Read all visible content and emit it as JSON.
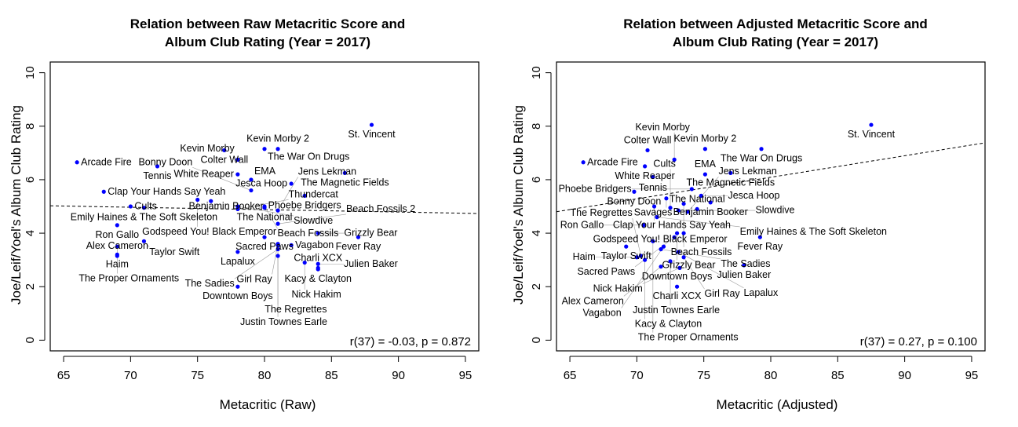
{
  "chart_data": [
    {
      "type": "scatter",
      "title": "Relation between Raw Metacritic Score and\nAlbum Club Rating (Year = 2017)",
      "title_lines": [
        "Relation between Raw Metacritic Score and",
        "Album Club Rating (Year = 2017)"
      ],
      "xlabel": "Metacritic (Raw)",
      "ylabel": "Joe/Leif/Yoel's Album Club Rating",
      "xlim": [
        64,
        96
      ],
      "ylim": [
        -0.4,
        10.4
      ],
      "xticks": [
        65,
        70,
        75,
        80,
        85,
        90,
        95
      ],
      "yticks": [
        0,
        2,
        4,
        6,
        8,
        10
      ],
      "point_color": "#0000ff",
      "annotation": "r(37) = -0.03, p = 0.872",
      "regression": {
        "intercept": 5.6,
        "slope": -0.009,
        "style": "dashed"
      },
      "points": [
        {
          "label": "St. Vincent",
          "x": 88,
          "y": 8.05
        },
        {
          "label": "Arcade Fire",
          "x": 66,
          "y": 6.65
        },
        {
          "label": "Tennis",
          "x": 72,
          "y": 6.5
        },
        {
          "label": "Colter Wall",
          "x": 77,
          "y": 7.1
        },
        {
          "label": "Kevin Morby",
          "x": 78,
          "y": 6.75
        },
        {
          "label": "The War On Drugs",
          "x": 80,
          "y": 7.15
        },
        {
          "label": "Kevin Morby 2",
          "x": 81,
          "y": 7.15,
          "hidden_label": true
        },
        {
          "label": "White Reaper",
          "x": 78,
          "y": 6.2
        },
        {
          "label": "EMA",
          "x": 79,
          "y": 6.0
        },
        {
          "label": "Bonny Doon",
          "x": 79,
          "y": 5.6
        },
        {
          "label": "The Magnetic Fields",
          "x": 86,
          "y": 6.25
        },
        {
          "label": "Phoebe Bridgers",
          "x": 83,
          "y": 5.4
        },
        {
          "label": "Benjamin Booker",
          "x": 76,
          "y": 5.2
        },
        {
          "label": "Jesca Hoop",
          "x": 82,
          "y": 5.85
        },
        {
          "label": "Clap Your Hands Say Yeah",
          "x": 68,
          "y": 5.55
        },
        {
          "label": "Emily Haines & The Soft Skeleton",
          "x": 71,
          "y": 4.95
        },
        {
          "label": "Cults",
          "x": 70,
          "y": 5.0
        },
        {
          "label": "Godspeed You! Black Emperor",
          "x": 75,
          "y": 5.25
        },
        {
          "label": "Slowdive",
          "x": 78,
          "y": 5.0
        },
        {
          "label": "Thundercat",
          "x": 78,
          "y": 4.9
        },
        {
          "label": "Beach Fossils",
          "x": 80,
          "y": 5.0
        },
        {
          "label": "The National",
          "x": 80,
          "y": 4.95
        },
        {
          "label": "Jens Lekman",
          "x": 81,
          "y": 4.85
        },
        {
          "label": "Ron Gallo",
          "x": 69,
          "y": 4.3
        },
        {
          "label": "The Proper Ornaments",
          "x": 69,
          "y": 3.5
        },
        {
          "label": "Taylor Swift",
          "x": 71,
          "y": 3.7
        },
        {
          "label": "Haim",
          "x": 69,
          "y": 3.2
        },
        {
          "label": "Alex Cameron",
          "x": 69,
          "y": 3.15
        },
        {
          "label": "Sacred Paws",
          "x": 80,
          "y": 3.85
        },
        {
          "label": "The Sadies",
          "x": 81,
          "y": 3.4
        },
        {
          "label": "Vagabon",
          "x": 82,
          "y": 3.55
        },
        {
          "label": "Fever Ray",
          "x": 87,
          "y": 3.85
        },
        {
          "label": "Grizzly Bear",
          "x": 84,
          "y": 4.0
        },
        {
          "label": "Lapalux",
          "x": 78,
          "y": 3.3
        },
        {
          "label": "The Regrettes",
          "x": 81,
          "y": 3.15
        },
        {
          "label": "Girl Ray",
          "x": 81,
          "y": 3.6
        },
        {
          "label": "Justin Townes Earle",
          "x": 81,
          "y": 3.55
        },
        {
          "label": "Nick Hakim",
          "x": 83,
          "y": 2.9
        },
        {
          "label": "Julien Baker",
          "x": 84,
          "y": 2.85
        },
        {
          "label": "Kacy & Clayton",
          "x": 84,
          "y": 2.65
        },
        {
          "label": "Charli XCX",
          "x": 84,
          "y": 2.7
        },
        {
          "label": "Downtown Boys",
          "x": 78,
          "y": 2.0
        },
        {
          "label": "Beach Fossils 2",
          "x": 81,
          "y": 4.35,
          "hidden_label": true
        }
      ]
    },
    {
      "type": "scatter",
      "title": "Relation between Adjusted Metacritic Score and\nAlbum Club Rating (Year = 2017)",
      "title_lines": [
        "Relation between Adjusted Metacritic Score and",
        "Album Club Rating (Year = 2017)"
      ],
      "xlabel": "Metacritic (Adjusted)",
      "ylabel": "Joe/Leif/Yoel's Album Club Rating",
      "xlim": [
        64,
        96
      ],
      "ylim": [
        -0.4,
        10.4
      ],
      "xticks": [
        65,
        70,
        75,
        80,
        85,
        90,
        95
      ],
      "yticks": [
        0,
        2,
        4,
        6,
        8,
        10
      ],
      "point_color": "#0000ff",
      "annotation": "r(37) = 0.27, p = 0.100",
      "regression": {
        "intercept": -0.35,
        "slope": 0.0805,
        "style": "dashed"
      },
      "points": [
        {
          "label": "St. Vincent",
          "x": 87.5,
          "y": 8.05
        },
        {
          "label": "Arcade Fire",
          "x": 66,
          "y": 6.65
        },
        {
          "label": "Colter Wall",
          "x": 70.8,
          "y": 7.1
        },
        {
          "label": "Kevin Morby",
          "x": 72.8,
          "y": 6.75
        },
        {
          "label": "The War On Drugs",
          "x": 79.3,
          "y": 7.15
        },
        {
          "label": "Kevin Morby 2",
          "x": 75.1,
          "y": 7.15,
          "hidden_label": true
        },
        {
          "label": "White Reaper",
          "x": 70.6,
          "y": 6.5
        },
        {
          "label": "Tennis",
          "x": 71.2,
          "y": 6.1
        },
        {
          "label": "EMA",
          "x": 75.1,
          "y": 6.2
        },
        {
          "label": "The Magnetic Fields",
          "x": 77,
          "y": 6.25
        },
        {
          "label": "Bonny Doon",
          "x": 69.8,
          "y": 5.55
        },
        {
          "label": "Phoebe Bridgers",
          "x": 74.1,
          "y": 5.65
        },
        {
          "label": "Benjamin Booker",
          "x": 75.5,
          "y": 5.15
        },
        {
          "label": "Savages",
          "x": 72.2,
          "y": 5.3
        },
        {
          "label": "Clap Your Hands Say Yeah",
          "x": 71.3,
          "y": 5.0
        },
        {
          "label": "Jesca Hoop",
          "x": 74.8,
          "y": 5.4
        },
        {
          "label": "Emily Haines & The Soft Skeleton",
          "x": 71.5,
          "y": 4.6
        },
        {
          "label": "Godspeed You! Black Emperor",
          "x": 73.5,
          "y": 5.1
        },
        {
          "label": "Cults",
          "x": 72.5,
          "y": 4.95
        },
        {
          "label": "Slowdive",
          "x": 73.1,
          "y": 4.85
        },
        {
          "label": "The National",
          "x": 74.5,
          "y": 4.9
        },
        {
          "label": "Jens Lekman",
          "x": 73.8,
          "y": 4.8
        },
        {
          "label": "Ron Gallo",
          "x": 70.5,
          "y": 4.3
        },
        {
          "label": "Beach Fossils",
          "x": 73.5,
          "y": 4.0
        },
        {
          "label": "The Proper Ornaments",
          "x": 71.2,
          "y": 3.7
        },
        {
          "label": "Sacred Paws",
          "x": 72.8,
          "y": 3.85
        },
        {
          "label": "Grizzly Bear",
          "x": 73.0,
          "y": 4.0
        },
        {
          "label": "Vagabon",
          "x": 72.0,
          "y": 3.5
        },
        {
          "label": "The Sadies",
          "x": 71.8,
          "y": 3.4
        },
        {
          "label": "Lapalux",
          "x": 73.1,
          "y": 3.3
        },
        {
          "label": "Taylor Swift",
          "x": 69.2,
          "y": 3.5
        },
        {
          "label": "Haim",
          "x": 70.0,
          "y": 3.1
        },
        {
          "label": "The Regrettes",
          "x": 70.3,
          "y": 3.15
        },
        {
          "label": "Girl Ray",
          "x": 73.5,
          "y": 3.1
        },
        {
          "label": "Alex Cameron",
          "x": 71.8,
          "y": 2.75
        },
        {
          "label": "Justin Townes Earle",
          "x": 72.5,
          "y": 2.95
        },
        {
          "label": "Nick Hakim",
          "x": 73.2,
          "y": 2.7
        },
        {
          "label": "Fever Ray",
          "x": 79.2,
          "y": 3.85
        },
        {
          "label": "Julien Baker",
          "x": 78.0,
          "y": 2.8
        },
        {
          "label": "Kacy & Clayton",
          "x": 70.6,
          "y": 3.0
        },
        {
          "label": "Charli XCX",
          "x": 73.0,
          "y": 2.0
        },
        {
          "label": "Downtown Boys",
          "x": 73.0,
          "y": 2.0,
          "hidden_point": true
        }
      ]
    }
  ]
}
